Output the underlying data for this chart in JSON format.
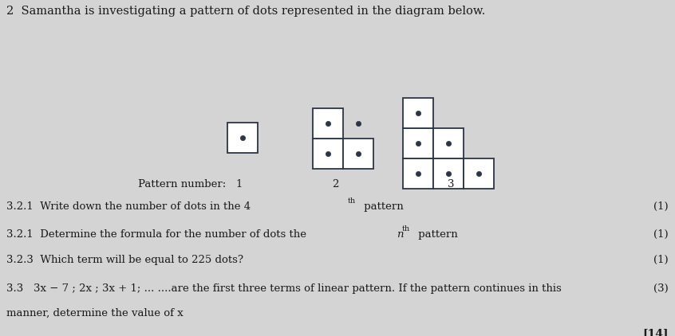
{
  "bg_color": "#d4d4d4",
  "title_text": "2  Samantha is investigating a pattern of dots represented in the diagram below.",
  "title_fontsize": 10.5,
  "dot_color": "#2a3545",
  "dot_size": 4.5,
  "line_color": "#2a3545",
  "line_width": 1.3,
  "font_family": "DejaVu Serif",
  "text_color": "#1a1a1a",
  "q321_1": "3.2.1  Write down the number of dots in the 4",
  "q321_2": "3.2.1  Determine the formula for the number of dots the ",
  "q323": "3.2.3  Which term will be equal to 225 dots?",
  "q33a": "3.3   3x − 7 ; 2x ; 3x + 1; ... ....are the first three terms of linear pattern. If the pattern continues in this",
  "q33b": "        manner, determine the value of x",
  "mark1": "(1)",
  "mark2": "(1)",
  "mark3": "(1)",
  "mark33": "(3)",
  "total": "[14]"
}
